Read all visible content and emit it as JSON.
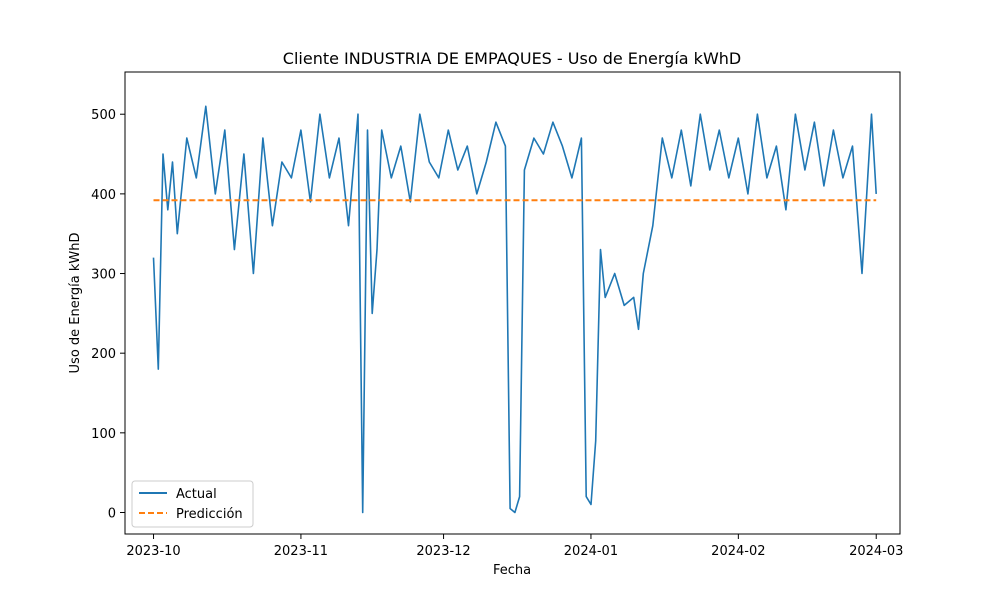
{
  "chart_data": {
    "type": "line",
    "title": "Cliente INDUSTRIA DE EMPAQUES - Uso de Energía kWhD",
    "xlabel": "Fecha",
    "ylabel": "Uso de Energía kWhD",
    "xlim": [
      "2023-09-25",
      "2024-03-06"
    ],
    "ylim": [
      -27,
      553
    ],
    "x_ticks": [
      "2023-10-01",
      "2023-11-01",
      "2023-12-01",
      "2024-01-01",
      "2024-02-01",
      "2024-03-01"
    ],
    "x_tick_labels": [
      "2023-10",
      "2023-11",
      "2023-12",
      "2024-01",
      "2024-02",
      "2024-03"
    ],
    "y_ticks": [
      0,
      100,
      200,
      300,
      400,
      500
    ],
    "y_tick_labels": [
      "0",
      "100",
      "200",
      "300",
      "400",
      "500"
    ],
    "legend_position": "lower-left",
    "grid": false,
    "series": [
      {
        "name": "Actual",
        "color": "#1f77b4",
        "style": "solid",
        "x": [
          "2023-10-01",
          "2023-10-02",
          "2023-10-03",
          "2023-10-04",
          "2023-10-05",
          "2023-10-06",
          "2023-10-08",
          "2023-10-10",
          "2023-10-12",
          "2023-10-14",
          "2023-10-16",
          "2023-10-18",
          "2023-10-20",
          "2023-10-22",
          "2023-10-24",
          "2023-10-26",
          "2023-10-28",
          "2023-10-30",
          "2023-11-01",
          "2023-11-03",
          "2023-11-05",
          "2023-11-07",
          "2023-11-09",
          "2023-11-11",
          "2023-11-13",
          "2023-11-14",
          "2023-11-15",
          "2023-11-16",
          "2023-11-17",
          "2023-11-18",
          "2023-11-20",
          "2023-11-22",
          "2023-11-24",
          "2023-11-26",
          "2023-11-28",
          "2023-11-30",
          "2023-12-02",
          "2023-12-04",
          "2023-12-06",
          "2023-12-08",
          "2023-12-10",
          "2023-12-12",
          "2023-12-14",
          "2023-12-15",
          "2023-12-16",
          "2023-12-17",
          "2023-12-18",
          "2023-12-20",
          "2023-12-22",
          "2023-12-24",
          "2023-12-26",
          "2023-12-28",
          "2023-12-30",
          "2023-12-31",
          "2024-01-01",
          "2024-01-02",
          "2024-01-03",
          "2024-01-04",
          "2024-01-06",
          "2024-01-08",
          "2024-01-10",
          "2024-01-11",
          "2024-01-12",
          "2024-01-14",
          "2024-01-16",
          "2024-01-18",
          "2024-01-20",
          "2024-01-22",
          "2024-01-24",
          "2024-01-26",
          "2024-01-28",
          "2024-01-30",
          "2024-02-01",
          "2024-02-03",
          "2024-02-05",
          "2024-02-07",
          "2024-02-09",
          "2024-02-11",
          "2024-02-13",
          "2024-02-15",
          "2024-02-17",
          "2024-02-19",
          "2024-02-21",
          "2024-02-23",
          "2024-02-25",
          "2024-02-27",
          "2024-02-29",
          "2024-03-01"
        ],
        "y": [
          320,
          180,
          450,
          380,
          440,
          350,
          470,
          420,
          510,
          400,
          480,
          330,
          450,
          300,
          470,
          360,
          440,
          420,
          480,
          390,
          500,
          420,
          470,
          360,
          500,
          0,
          480,
          250,
          330,
          480,
          420,
          460,
          390,
          500,
          440,
          420,
          480,
          430,
          460,
          400,
          440,
          490,
          460,
          5,
          0,
          20,
          430,
          470,
          450,
          490,
          460,
          420,
          470,
          20,
          10,
          90,
          330,
          270,
          300,
          260,
          270,
          230,
          300,
          360,
          470,
          420,
          480,
          410,
          500,
          430,
          480,
          420,
          470,
          400,
          500,
          420,
          460,
          380,
          500,
          430,
          490,
          410,
          480,
          420,
          460,
          300,
          500,
          400
        ]
      },
      {
        "name": "Predicción",
        "color": "#ff7f0e",
        "style": "dashed",
        "x": [
          "2023-10-01",
          "2024-03-01"
        ],
        "y": [
          392,
          392
        ]
      }
    ]
  }
}
